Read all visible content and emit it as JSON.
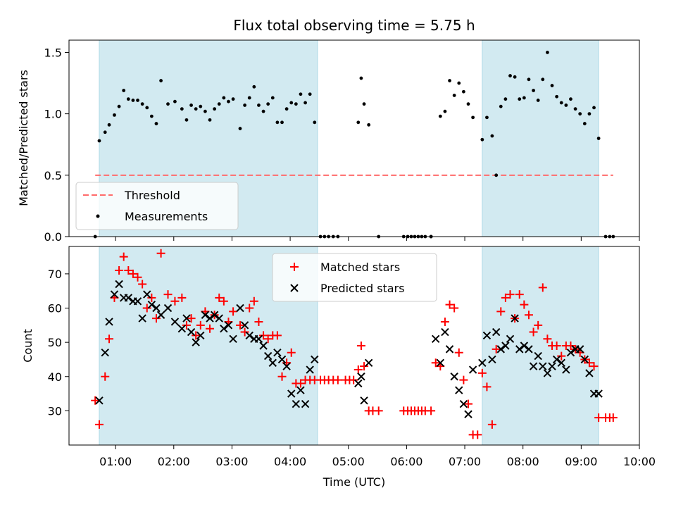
{
  "chart_data": {
    "title": "Flux total observing time = 5.75 h",
    "xlabel": "Time (UTC)",
    "x_tick_labels": [
      "01:00",
      "02:00",
      "03:00",
      "04:00",
      "05:00",
      "06:00",
      "07:00",
      "08:00",
      "09:00",
      "10:00"
    ],
    "x_tick_values": [
      1,
      2,
      3,
      4,
      5,
      6,
      7,
      8,
      9,
      10
    ],
    "xlim": [
      0.2,
      10.0
    ],
    "shaded_spans": [
      [
        0.72,
        4.47
      ],
      [
        7.3,
        9.3
      ]
    ],
    "colors": {
      "shade": "#add8e6",
      "matched": "#ff0000",
      "predicted": "#000000",
      "threshold": "#ff6b6b",
      "measurement": "#000000"
    },
    "panels": [
      {
        "type": "scatter",
        "ylabel": "Matched/Predicted stars",
        "ylim": [
          0.0,
          1.6
        ],
        "y_ticks": [
          0.0,
          0.5,
          1.0,
          1.5
        ],
        "y_tick_labels": [
          "0.0",
          "0.5",
          "1.0",
          "1.5"
        ],
        "legend_position": "lower-left",
        "threshold": {
          "name": "Threshold",
          "value": 0.5,
          "x_range": [
            0.65,
            9.55
          ]
        },
        "series": [
          {
            "name": "Measurements",
            "x": [
              0.65,
              0.72,
              0.82,
              0.89,
              0.98,
              1.06,
              1.14,
              1.22,
              1.3,
              1.38,
              1.46,
              1.54,
              1.62,
              1.7,
              1.78,
              1.9,
              2.02,
              2.14,
              2.22,
              2.3,
              2.38,
              2.46,
              2.54,
              2.62,
              2.7,
              2.78,
              2.86,
              2.94,
              3.02,
              3.14,
              3.22,
              3.3,
              3.38,
              3.46,
              3.54,
              3.62,
              3.7,
              3.78,
              3.86,
              3.94,
              4.02,
              4.1,
              4.18,
              4.26,
              4.34,
              4.42,
              5.17,
              5.22,
              5.27,
              5.35,
              6.42,
              6.58,
              6.66,
              6.74,
              6.82,
              6.9,
              6.98,
              7.06,
              7.14,
              7.3,
              7.38,
              7.47,
              7.54,
              7.62,
              7.7,
              7.78,
              7.86,
              7.94,
              8.02,
              8.1,
              8.18,
              8.26,
              8.34,
              8.42,
              8.5,
              8.58,
              8.66,
              8.74,
              8.82,
              8.9,
              8.98,
              9.06,
              9.14,
              9.22,
              9.3,
              4.52,
              4.59,
              4.66,
              4.74,
              4.82,
              5.52,
              5.95,
              6.02,
              6.08,
              6.14,
              6.2,
              6.26,
              6.32,
              6.42,
              9.42,
              9.49,
              9.55
            ],
            "y": [
              0.0,
              0.78,
              0.85,
              0.91,
              0.99,
              1.06,
              1.19,
              1.12,
              1.11,
              1.11,
              1.08,
              1.05,
              0.98,
              0.92,
              1.27,
              1.08,
              1.1,
              1.04,
              0.95,
              1.07,
              1.04,
              1.06,
              1.02,
              0.95,
              1.04,
              1.08,
              1.13,
              1.1,
              1.12,
              0.88,
              1.07,
              1.13,
              1.22,
              1.07,
              1.02,
              1.08,
              1.13,
              0.93,
              0.93,
              1.04,
              1.09,
              1.08,
              1.16,
              1.09,
              1.16,
              0.93,
              0.93,
              1.29,
              1.08,
              0.91,
              0.0,
              0.98,
              1.02,
              1.27,
              1.15,
              1.25,
              1.18,
              1.08,
              0.97,
              0.79,
              0.97,
              0.82,
              0.5,
              1.06,
              1.12,
              1.31,
              1.3,
              1.12,
              1.13,
              1.28,
              1.19,
              1.11,
              1.28,
              1.5,
              1.23,
              1.14,
              1.09,
              1.07,
              1.12,
              1.04,
              1.0,
              0.92,
              1.0,
              1.05,
              0.8,
              0.0,
              0.0,
              0.0,
              0.0,
              0.0,
              0.0,
              0.0,
              0.0,
              0.0,
              0.0,
              0.0,
              0.0,
              0.0,
              0.0,
              0.0,
              0.0,
              0.0
            ]
          }
        ]
      },
      {
        "type": "scatter",
        "ylabel": "Count",
        "ylim": [
          20,
          78
        ],
        "y_ticks": [
          30,
          40,
          50,
          60,
          70
        ],
        "y_tick_labels": [
          "30",
          "40",
          "50",
          "60",
          "70"
        ],
        "legend_position": "upper-center",
        "series": [
          {
            "name": "Matched stars",
            "marker": "plus",
            "x": [
              0.65,
              0.72,
              0.82,
              0.89,
              0.98,
              1.06,
              1.14,
              1.22,
              1.3,
              1.38,
              1.46,
              1.54,
              1.62,
              1.7,
              1.78,
              1.9,
              2.02,
              2.14,
              2.22,
              2.3,
              2.38,
              2.46,
              2.54,
              2.62,
              2.7,
              2.78,
              2.86,
              2.94,
              3.02,
              3.14,
              3.22,
              3.3,
              3.38,
              3.46,
              3.54,
              3.62,
              3.7,
              3.78,
              3.86,
              3.94,
              4.02,
              4.1,
              4.18,
              4.26,
              4.34,
              4.42,
              4.52,
              4.59,
              4.66,
              4.74,
              4.82,
              4.95,
              5.02,
              5.09,
              5.17,
              5.22,
              5.27,
              5.35,
              5.42,
              5.52,
              5.95,
              6.02,
              6.08,
              6.14,
              6.2,
              6.26,
              6.32,
              6.42,
              6.5,
              6.58,
              6.66,
              6.74,
              6.82,
              6.9,
              6.98,
              7.06,
              7.14,
              7.22,
              7.3,
              7.38,
              7.47,
              7.54,
              7.62,
              7.7,
              7.78,
              7.86,
              7.94,
              8.02,
              8.1,
              8.18,
              8.26,
              8.34,
              8.42,
              8.5,
              8.58,
              8.66,
              8.74,
              8.82,
              8.9,
              8.98,
              9.06,
              9.14,
              9.22,
              9.3,
              9.42,
              9.49,
              9.55
            ],
            "y": [
              33,
              26,
              40,
              51,
              63,
              71,
              75,
              71,
              70,
              69,
              67,
              60,
              63,
              57,
              76,
              64,
              62,
              63,
              55,
              57,
              52,
              55,
              59,
              54,
              58,
              63,
              62,
              56,
              59,
              55,
              53,
              60,
              62,
              56,
              52,
              51,
              52,
              52,
              40,
              44,
              47,
              38,
              38,
              39,
              39,
              39,
              39,
              39,
              39,
              39,
              39,
              39,
              39,
              39,
              42,
              49,
              43,
              30,
              30,
              30,
              30,
              30,
              30,
              30,
              30,
              30,
              30,
              30,
              44,
              43,
              56,
              61,
              60,
              47,
              39,
              32,
              23,
              23,
              41,
              37,
              26,
              48,
              59,
              63,
              64,
              57,
              64,
              61,
              58,
              53,
              55,
              66,
              51,
              49,
              49,
              46,
              49,
              49,
              48,
              47,
              45,
              44,
              43,
              28,
              28,
              28,
              28
            ]
          },
          {
            "name": "Predicted stars",
            "marker": "x",
            "x": [
              0.72,
              0.82,
              0.89,
              0.98,
              1.06,
              1.14,
              1.22,
              1.3,
              1.38,
              1.46,
              1.54,
              1.62,
              1.7,
              1.78,
              1.9,
              2.02,
              2.14,
              2.22,
              2.3,
              2.38,
              2.46,
              2.54,
              2.62,
              2.7,
              2.78,
              2.86,
              2.94,
              3.02,
              3.14,
              3.22,
              3.3,
              3.38,
              3.46,
              3.54,
              3.62,
              3.7,
              3.78,
              3.86,
              3.94,
              4.02,
              4.1,
              4.18,
              4.26,
              4.34,
              4.42,
              5.17,
              5.22,
              5.27,
              5.35,
              6.5,
              6.58,
              6.66,
              6.74,
              6.82,
              6.9,
              6.98,
              7.06,
              7.14,
              7.3,
              7.38,
              7.47,
              7.54,
              7.62,
              7.7,
              7.78,
              7.86,
              7.94,
              8.02,
              8.1,
              8.18,
              8.26,
              8.34,
              8.42,
              8.5,
              8.58,
              8.66,
              8.74,
              8.82,
              8.9,
              8.98,
              9.06,
              9.14,
              9.22,
              9.3
            ],
            "y": [
              33,
              47,
              56,
              64,
              67,
              63,
              63,
              62,
              62,
              57,
              64,
              61,
              60,
              58,
              60,
              56,
              54,
              57,
              53,
              50,
              52,
              58,
              57,
              58,
              57,
              54,
              55,
              51,
              60,
              55,
              52,
              51,
              51,
              49,
              46,
              44,
              47,
              45,
              43,
              35,
              32,
              36,
              32,
              42,
              45,
              38,
              40,
              33,
              44,
              51,
              44,
              53,
              48,
              40,
              36,
              32,
              29,
              42,
              44,
              52,
              45,
              53,
              48,
              49,
              51,
              57,
              48,
              49,
              48,
              43,
              46,
              43,
              41,
              43,
              45,
              44,
              42,
              47,
              48,
              48,
              45,
              41,
              35,
              35
            ]
          }
        ]
      }
    ]
  }
}
